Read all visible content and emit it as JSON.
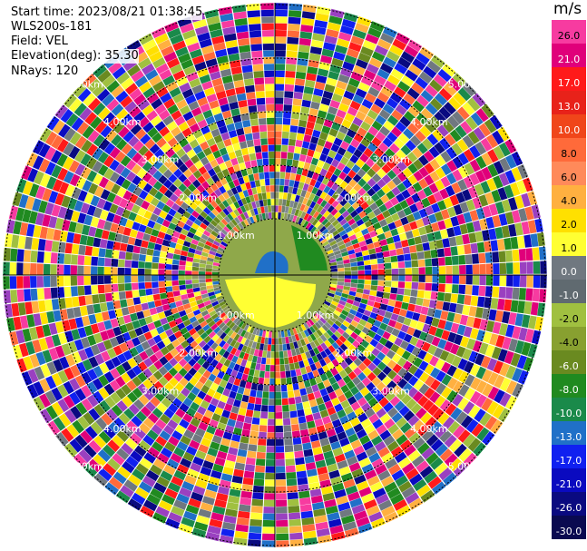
{
  "header": {
    "start_time": "Start time: 2023/08/21 01:38:45",
    "instrument": "WLS200s-181",
    "field": "Field: VEL",
    "elevation": "Elevation(deg): 35.30",
    "nrays": "NRays: 120"
  },
  "colorbar": {
    "unit": "m/s",
    "labels": [
      "26.0",
      "21.0",
      "17.0",
      "13.0",
      "10.0",
      "8.0",
      "6.0",
      "4.0",
      "2.0",
      "1.0",
      "0.0",
      "-1.0",
      "-2.0",
      "-4.0",
      "-6.0",
      "-8.0",
      "-10.0",
      "-13.0",
      "-17.0",
      "-21.0",
      "-26.0",
      "-30.0"
    ],
    "colors": [
      "#f73ba0",
      "#e0007a",
      "#ff1a1a",
      "#e8221a",
      "#f0461a",
      "#ff6a3a",
      "#ff8a5a",
      "#ffb040",
      "#ffe000",
      "#ffff33",
      "#707880",
      "#606a70",
      "#a0c040",
      "#88a030",
      "#6a8a20",
      "#208a20",
      "#1a8a4a",
      "#2070c8",
      "#1020f0",
      "#0a0ac0",
      "#0a0a80",
      "#0a0a50"
    ]
  },
  "range_rings": {
    "labels": [
      "1.00km",
      "2.00km",
      "3.00km",
      "4.00km",
      "5.00km"
    ]
  }
}
